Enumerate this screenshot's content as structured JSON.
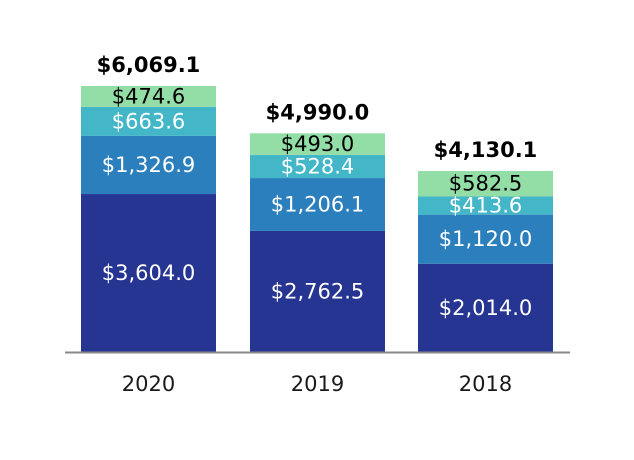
{
  "chart_data": {
    "type": "bar",
    "stacked": true,
    "title": "",
    "xlabel": "",
    "ylabel": "",
    "ylim": [
      0,
      6500
    ],
    "grid": false,
    "legend": "none",
    "categories": [
      "2020",
      "2019",
      "2018"
    ],
    "series": [
      {
        "color": "#273592",
        "text_color": "#ffffff",
        "values": [
          3604.0,
          2762.5,
          2014.0
        ],
        "labels": [
          "$3,604.0",
          "$2,762.5",
          "$2,014.0"
        ]
      },
      {
        "color": "#2c7fbd",
        "text_color": "#ffffff",
        "values": [
          1326.9,
          1206.1,
          1120.0
        ],
        "labels": [
          "$1,326.9",
          "$1,206.1",
          "$1,120.0"
        ]
      },
      {
        "color": "#43b6c8",
        "text_color": "#ffffff",
        "values": [
          663.6,
          528.4,
          413.6
        ],
        "labels": [
          "$663.6",
          "$528.4",
          "$413.6"
        ]
      },
      {
        "color": "#93dda6",
        "text_color": "#000000",
        "values": [
          474.6,
          493.0,
          582.5
        ],
        "labels": [
          "$474.6",
          "$493.0",
          "$582.5"
        ]
      }
    ],
    "totals": [
      6069.1,
      4990.0,
      4130.1
    ],
    "total_labels": [
      "$6,069.1",
      "$4,990.0",
      "$4,130.1"
    ],
    "axis_color": "#888888"
  }
}
